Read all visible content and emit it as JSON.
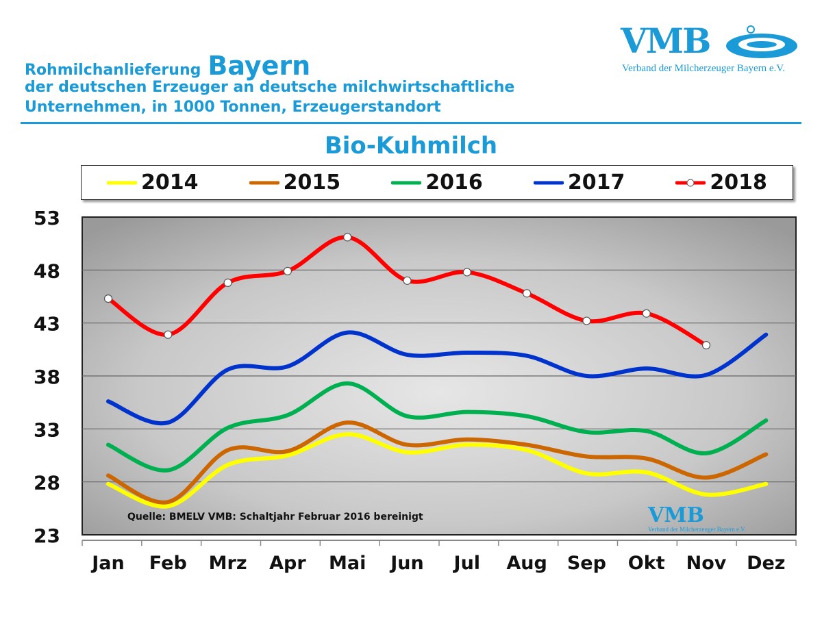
{
  "header": {
    "title_prefix": "Rohmilchanlieferung",
    "title_region": "Bayern",
    "line2": "der deutschen Erzeuger an deutsche milchwirtschaftliche",
    "line3": "Unternehmen, in 1000 Tonnen, Erzeugerstandort"
  },
  "logo": {
    "text": "VMB",
    "subtitle": "Verband der Milcherzeuger Bayern e.V."
  },
  "colors": {
    "accent": "#1a9ad6"
  },
  "chart_data": {
    "type": "line",
    "title": "Bio-Kuhmilch",
    "categories": [
      "Jan",
      "Feb",
      "Mrz",
      "Apr",
      "Mai",
      "Jun",
      "Jul",
      "Aug",
      "Sep",
      "Okt",
      "Nov",
      "Dez"
    ],
    "yticks": [
      23,
      28,
      33,
      38,
      43,
      48,
      53
    ],
    "ylim": [
      23,
      53
    ],
    "grid": true,
    "legend": "top",
    "note": "Quelle: BMELV   VMB: Schaltjahr  Februar  2016  bereinigt",
    "series": [
      {
        "name": "2014",
        "color": "#ffff00",
        "markers": false,
        "values": [
          27.8,
          25.7,
          29.6,
          30.5,
          32.5,
          30.8,
          31.5,
          31.0,
          28.8,
          28.9,
          26.8,
          27.8
        ]
      },
      {
        "name": "2015",
        "color": "#cc6600",
        "markers": false,
        "values": [
          28.6,
          26.1,
          31.0,
          30.9,
          33.6,
          31.5,
          32.0,
          31.5,
          30.4,
          30.2,
          28.4,
          30.6
        ]
      },
      {
        "name": "2016",
        "color": "#00b050",
        "markers": false,
        "values": [
          31.5,
          29.1,
          33.1,
          34.3,
          37.3,
          34.2,
          34.6,
          34.2,
          32.7,
          32.8,
          30.7,
          33.8
        ]
      },
      {
        "name": "2017",
        "color": "#0033cc",
        "markers": false,
        "values": [
          35.6,
          33.6,
          38.6,
          38.9,
          42.1,
          40.0,
          40.2,
          39.9,
          38.0,
          38.7,
          38.1,
          41.9
        ]
      },
      {
        "name": "2018",
        "color": "#ff0000",
        "markers": true,
        "values": [
          45.3,
          41.9,
          46.8,
          47.9,
          51.1,
          47.0,
          47.8,
          45.8,
          43.2,
          43.9,
          40.9,
          null
        ]
      }
    ]
  }
}
